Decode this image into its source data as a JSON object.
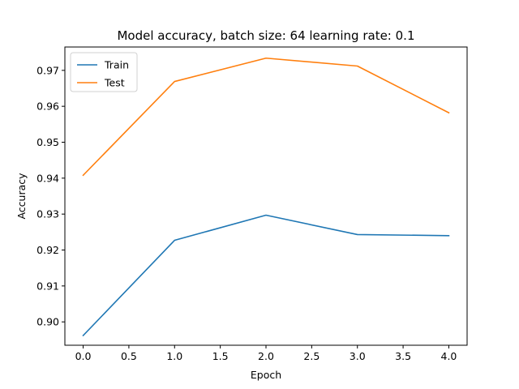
{
  "chart_data": {
    "type": "line",
    "title": "Model accuracy, batch size: 64 learning rate: 0.1",
    "xlabel": "Epoch",
    "ylabel": "Accuracy",
    "xlim": [
      -0.2,
      4.2
    ],
    "ylim": [
      0.8935,
      0.9765
    ],
    "xticks": [
      0.0,
      0.5,
      1.0,
      1.5,
      2.0,
      2.5,
      3.0,
      3.5,
      4.0
    ],
    "xtick_labels": [
      "0.0",
      "0.5",
      "1.0",
      "1.5",
      "2.0",
      "2.5",
      "3.0",
      "3.5",
      "4.0"
    ],
    "yticks": [
      0.9,
      0.91,
      0.92,
      0.93,
      0.94,
      0.95,
      0.96,
      0.97
    ],
    "ytick_labels": [
      "0.90",
      "0.91",
      "0.92",
      "0.93",
      "0.94",
      "0.95",
      "0.96",
      "0.97"
    ],
    "x": [
      0,
      1,
      2,
      3,
      4
    ],
    "series": [
      {
        "name": "Train",
        "color": "#1f77b4",
        "values": [
          0.8962,
          0.9227,
          0.9297,
          0.9243,
          0.924
        ]
      },
      {
        "name": "Test",
        "color": "#ff7f0e",
        "values": [
          0.9408,
          0.9669,
          0.9734,
          0.9712,
          0.9582
        ]
      }
    ],
    "legend": "top-left",
    "grid": false
  }
}
